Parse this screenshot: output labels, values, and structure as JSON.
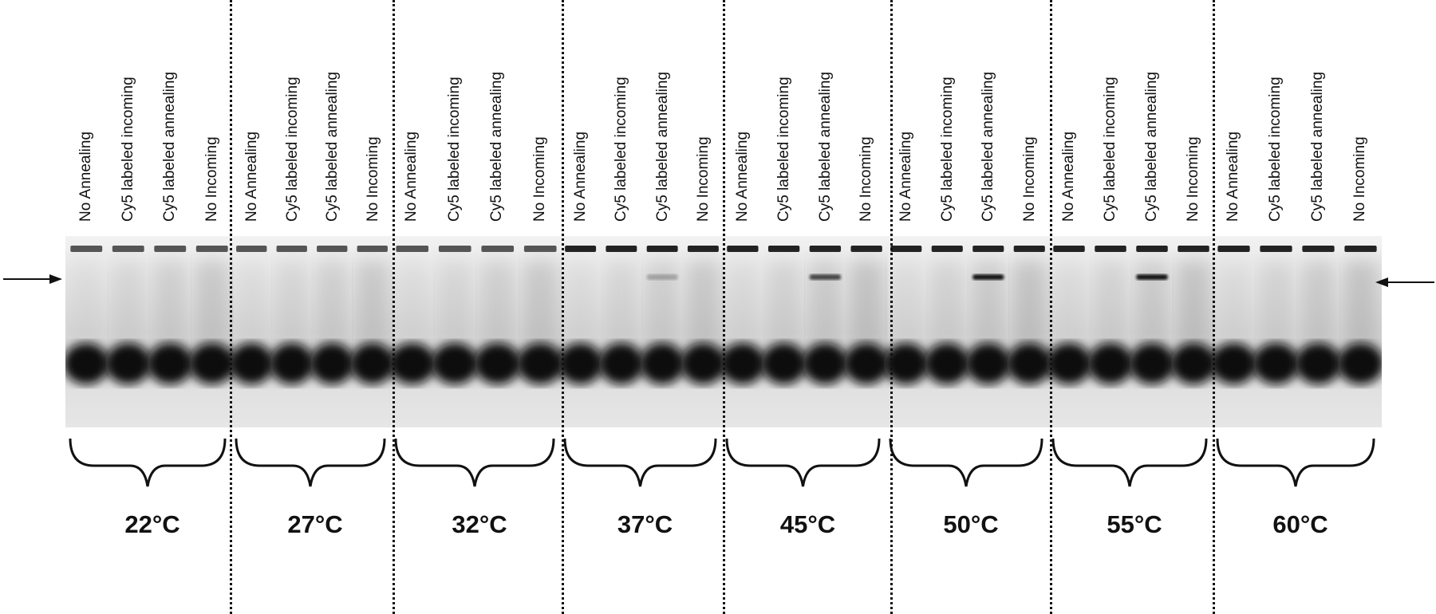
{
  "lane_labels": [
    "No Annealing",
    "Cy5 labeled incoming",
    "Cy5 labeled annealing",
    "No Incoming"
  ],
  "temperature_groups": [
    {
      "label": "22°C"
    },
    {
      "label": "27°C"
    },
    {
      "label": "32°C"
    },
    {
      "label": "37°C"
    },
    {
      "label": "45°C"
    },
    {
      "label": "50°C"
    },
    {
      "label": "55°C"
    },
    {
      "label": "60°C"
    }
  ],
  "colors": {
    "band": "#0d0d0d",
    "gel_background": "#e9e9e9",
    "ink": "#111111"
  },
  "icons": {
    "left_marker": "arrow-right-icon",
    "right_marker": "arrow-left-icon",
    "group_bracket": "curly-brace-icon"
  }
}
